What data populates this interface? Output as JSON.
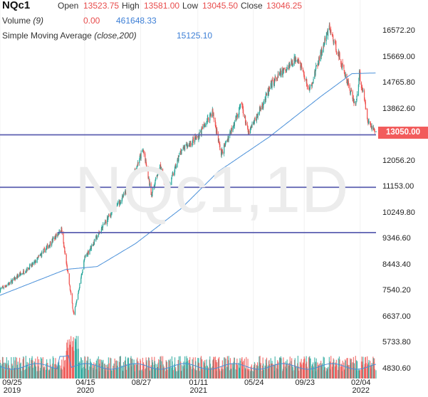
{
  "header": {
    "symbol": "NQc1",
    "open_label": "Open",
    "open_value": "13523.75",
    "high_label": "High",
    "high_value": "13581.00",
    "low_label": "Low",
    "low_value": "13045.50",
    "close_label": "Close",
    "close_value": "13046.25",
    "volume_label": "Volume",
    "volume_param": "(9)",
    "volume_value1": "0.00",
    "volume_value2": "461648.33",
    "sma_label": "Simple Moving Average",
    "sma_param": "(close,200)",
    "sma_value": "15125.10"
  },
  "watermark": "NQc1,1D",
  "last_price_tag": "13050.00",
  "colors": {
    "up": "#26a69a",
    "down": "#ef5350",
    "sma": "#4a90d9",
    "hline": "#5b5fb0",
    "tag": "#f25c5c"
  },
  "chart_data": {
    "type": "candlestick",
    "title": "NQc1",
    "interval": "1D",
    "y_ticks": [
      "16572.20",
      "15669.00",
      "14765.80",
      "13862.60",
      "13050.00",
      "12056.20",
      "11153.00",
      "10249.80",
      "9346.60",
      "8443.40",
      "7540.20",
      "6637.00",
      "5733.80",
      "4830.60"
    ],
    "y_range": [
      4600,
      16900
    ],
    "x_ticks": [
      {
        "label": "09/25",
        "sub": "2019"
      },
      {
        "label": "04/15",
        "sub": "2020"
      },
      {
        "label": "08/27",
        "sub": ""
      },
      {
        "label": "01/11",
        "sub": "2021"
      },
      {
        "label": "05/24",
        "sub": ""
      },
      {
        "label": "09/23",
        "sub": ""
      },
      {
        "label": "02/04",
        "sub": "2022"
      }
    ],
    "x_range": [
      "2019-09-25",
      "2022-03-14"
    ],
    "price_anchors": [
      [
        "2019-09-25",
        7600
      ],
      [
        "2019-10-20",
        7850
      ],
      [
        "2019-12-15",
        8500
      ],
      [
        "2020-01-20",
        9150
      ],
      [
        "2020-02-19",
        9700
      ],
      [
        "2020-03-20",
        6700
      ],
      [
        "2020-04-15",
        8700
      ],
      [
        "2020-06-10",
        10100
      ],
      [
        "2020-07-20",
        10900
      ],
      [
        "2020-09-02",
        12450
      ],
      [
        "2020-09-22",
        10900
      ],
      [
        "2020-10-12",
        11900
      ],
      [
        "2020-10-30",
        11000
      ],
      [
        "2020-12-01",
        12400
      ],
      [
        "2021-01-11",
        12900
      ],
      [
        "2021-02-15",
        13800
      ],
      [
        "2021-03-08",
        12300
      ],
      [
        "2021-04-26",
        14050
      ],
      [
        "2021-05-12",
        13000
      ],
      [
        "2021-07-10",
        14800
      ],
      [
        "2021-09-07",
        15700
      ],
      [
        "2021-10-05",
        14500
      ],
      [
        "2021-11-22",
        16700
      ],
      [
        "2021-12-20",
        15500
      ],
      [
        "2022-01-24",
        13950
      ],
      [
        "2022-02-02",
        15100
      ],
      [
        "2022-02-24",
        13400
      ],
      [
        "2022-03-14",
        13050
      ]
    ],
    "sma_200": [
      [
        "2019-09-25",
        7400
      ],
      [
        "2020-03-01",
        8300
      ],
      [
        "2020-05-15",
        8400
      ],
      [
        "2020-08-15",
        9200
      ],
      [
        "2020-12-01",
        10400
      ],
      [
        "2021-03-01",
        11700
      ],
      [
        "2021-07-01",
        12900
      ],
      [
        "2021-11-01",
        14300
      ],
      [
        "2022-01-15",
        15100
      ],
      [
        "2022-03-14",
        15125.1
      ]
    ],
    "horizontal_lines": [
      {
        "value": 13050,
        "from": "2019-09-25",
        "to": "2022-03-14"
      },
      {
        "value": 11153,
        "from": "2019-09-25",
        "to": "2022-03-14"
      },
      {
        "value": 9580,
        "from": "2020-02-10",
        "to": "2022-03-14"
      }
    ],
    "volume": {
      "pane_range": [
        4600,
        6100
      ],
      "moving_average_period": 9
    }
  }
}
